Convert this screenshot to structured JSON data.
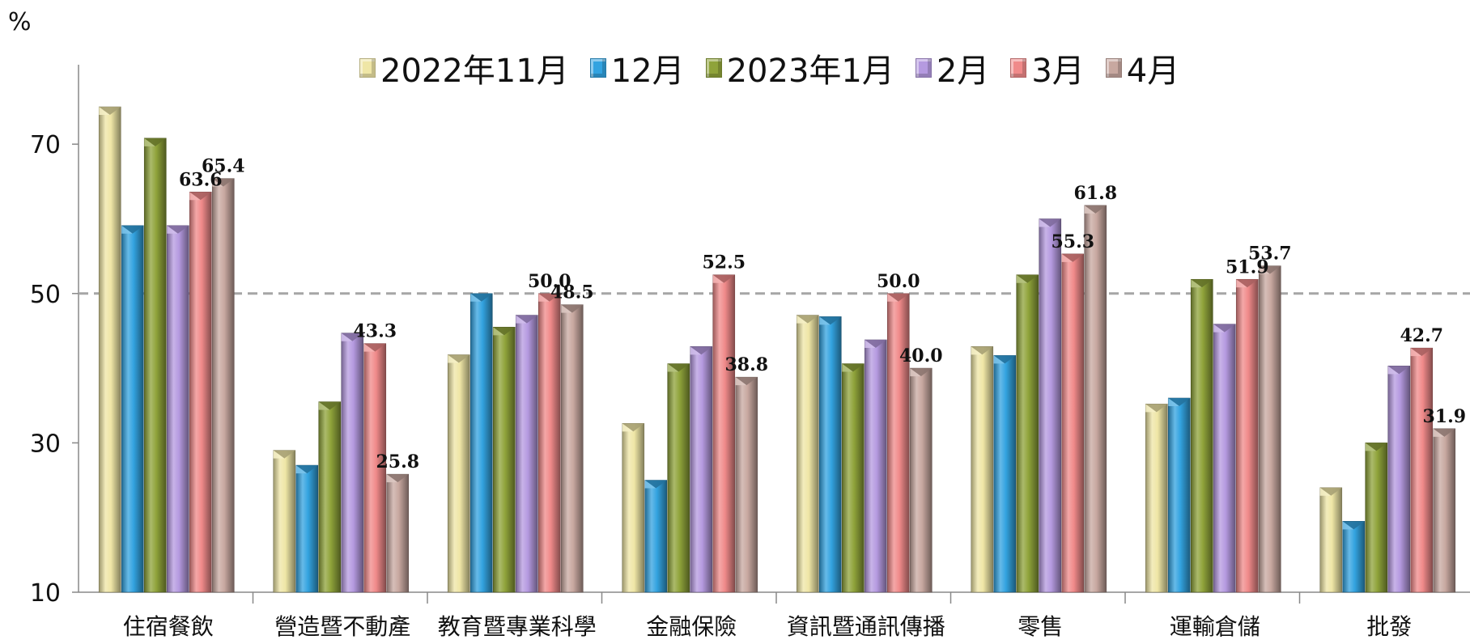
{
  "chart_data": {
    "type": "bar",
    "unit_label": "%",
    "ylim": [
      10,
      80
    ],
    "yticks": [
      10,
      30,
      50,
      70
    ],
    "reference_line": 50,
    "categories": [
      "住宿餐飲",
      "營造暨不動產",
      "教育暨專業科學",
      "金融保險",
      "資訊暨通訊傳播",
      "零售",
      "運輸倉儲",
      "批發"
    ],
    "series": [
      {
        "name": "2022年11月",
        "color": "#EFE6A6",
        "values": [
          75.0,
          29.0,
          41.8,
          32.6,
          47.1,
          42.9,
          35.2,
          24.0
        ]
      },
      {
        "name": "12月",
        "color": "#33A3E0",
        "values": [
          59.1,
          27.0,
          50.0,
          25.0,
          46.9,
          41.7,
          36.0,
          19.5
        ]
      },
      {
        "name": "2023年1月",
        "color": "#8FA33A",
        "values": [
          70.8,
          35.5,
          45.5,
          40.6,
          40.6,
          52.5,
          51.9,
          30.0
        ]
      },
      {
        "name": "2月",
        "color": "#B59AE0",
        "values": [
          59.1,
          44.7,
          47.1,
          42.9,
          43.8,
          60.0,
          45.9,
          40.3
        ]
      },
      {
        "name": "3月",
        "color": "#F08A8A",
        "values": [
          63.6,
          43.3,
          50.0,
          52.5,
          50.0,
          55.3,
          51.9,
          42.7
        ]
      },
      {
        "name": "4月",
        "color": "#C8A8A0",
        "values": [
          65.4,
          25.8,
          48.5,
          38.8,
          40.0,
          61.8,
          53.7,
          31.9
        ]
      }
    ],
    "data_labels": [
      {
        "category": "住宿餐飲",
        "series": "3月",
        "text": "63.6"
      },
      {
        "category": "住宿餐飲",
        "series": "4月",
        "text": "65.4"
      },
      {
        "category": "營造暨不動產",
        "series": "3月",
        "text": "43.3"
      },
      {
        "category": "營造暨不動產",
        "series": "4月",
        "text": "25.8"
      },
      {
        "category": "教育暨專業科學",
        "series": "3月",
        "text": "50.0"
      },
      {
        "category": "教育暨專業科學",
        "series": "4月",
        "text": "48.5"
      },
      {
        "category": "金融保險",
        "series": "3月",
        "text": "52.5"
      },
      {
        "category": "金融保險",
        "series": "4月",
        "text": "38.8"
      },
      {
        "category": "資訊暨通訊傳播",
        "series": "3月",
        "text": "50.0"
      },
      {
        "category": "資訊暨通訊傳播",
        "series": "4月",
        "text": "40.0"
      },
      {
        "category": "零售",
        "series": "3月",
        "text": "55.3"
      },
      {
        "category": "零售",
        "series": "4月",
        "text": "61.8"
      },
      {
        "category": "運輸倉儲",
        "series": "3月",
        "text": "51.9"
      },
      {
        "category": "運輸倉儲",
        "series": "4月",
        "text": "53.7"
      },
      {
        "category": "批發",
        "series": "3月",
        "text": "42.7"
      },
      {
        "category": "批發",
        "series": "4月",
        "text": "31.9"
      }
    ],
    "grid": false,
    "legend_position": "top"
  }
}
